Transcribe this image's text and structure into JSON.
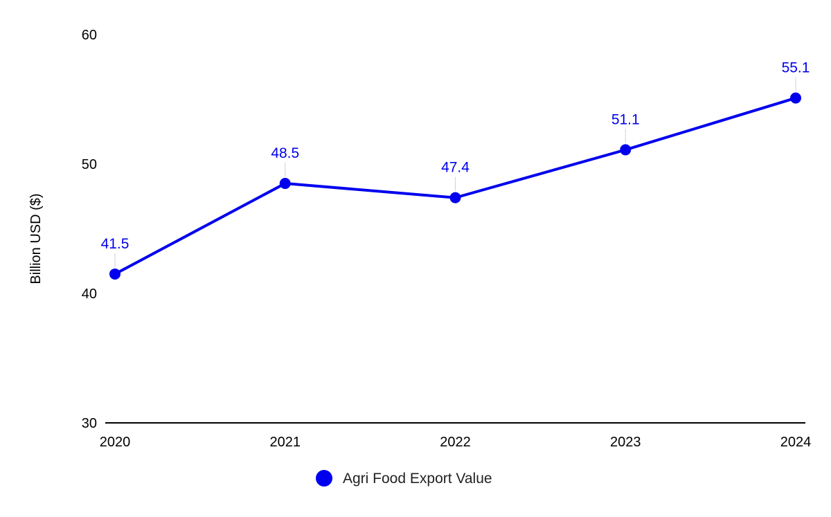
{
  "chart_data": {
    "type": "line",
    "x": [
      "2020",
      "2021",
      "2022",
      "2023",
      "2024"
    ],
    "series": [
      {
        "name": "Agri Food Export Value",
        "values": [
          41.5,
          48.5,
          47.4,
          51.1,
          55.1
        ],
        "value_labels": [
          "41.5",
          "48.5",
          "47.4",
          "51.1",
          "55.1"
        ],
        "color": "#0000EE"
      }
    ],
    "ylabel": "Billion USD ($)",
    "xlabel": "",
    "ylim": [
      30,
      60
    ],
    "yticks": [
      "30",
      "40",
      "50",
      "60"
    ],
    "grid": false,
    "legend_position": "bottom",
    "data_labels": true
  }
}
